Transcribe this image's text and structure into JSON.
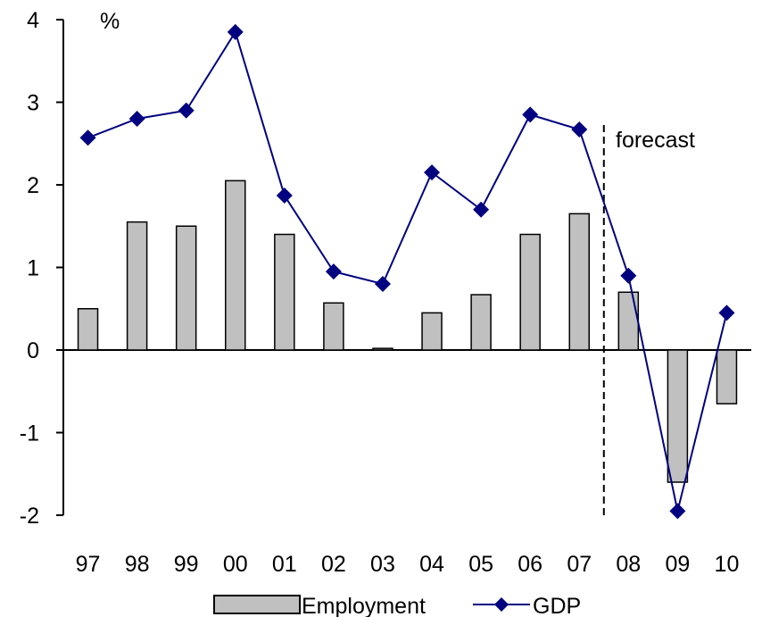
{
  "chart_data": {
    "type": "bar",
    "title": "",
    "xlabel": "",
    "ylabel": "",
    "unit_label": "%",
    "categories": [
      "97",
      "98",
      "99",
      "00",
      "01",
      "02",
      "03",
      "04",
      "05",
      "06",
      "07",
      "08",
      "09",
      "10"
    ],
    "series": [
      {
        "name": "Employment",
        "type": "bar",
        "color": "#c0c0c0",
        "values": [
          0.5,
          1.55,
          1.5,
          2.05,
          1.4,
          0.57,
          0.02,
          0.45,
          0.67,
          1.4,
          1.65,
          0.7,
          -1.6,
          -0.65
        ]
      },
      {
        "name": "GDP",
        "type": "line",
        "color": "#000080",
        "marker": "diamond",
        "values": [
          2.57,
          2.8,
          2.9,
          3.85,
          1.87,
          0.95,
          0.8,
          2.15,
          1.7,
          2.85,
          2.67,
          0.9,
          -1.95,
          0.45
        ]
      }
    ],
    "ylim": [
      -2,
      4
    ],
    "yticks": [
      "4",
      "3",
      "2",
      "1",
      "0",
      "-1",
      "-2"
    ],
    "forecast_label": "forecast",
    "forecast_divider_after": "07",
    "grid": false,
    "legend_position": "bottom-center"
  }
}
